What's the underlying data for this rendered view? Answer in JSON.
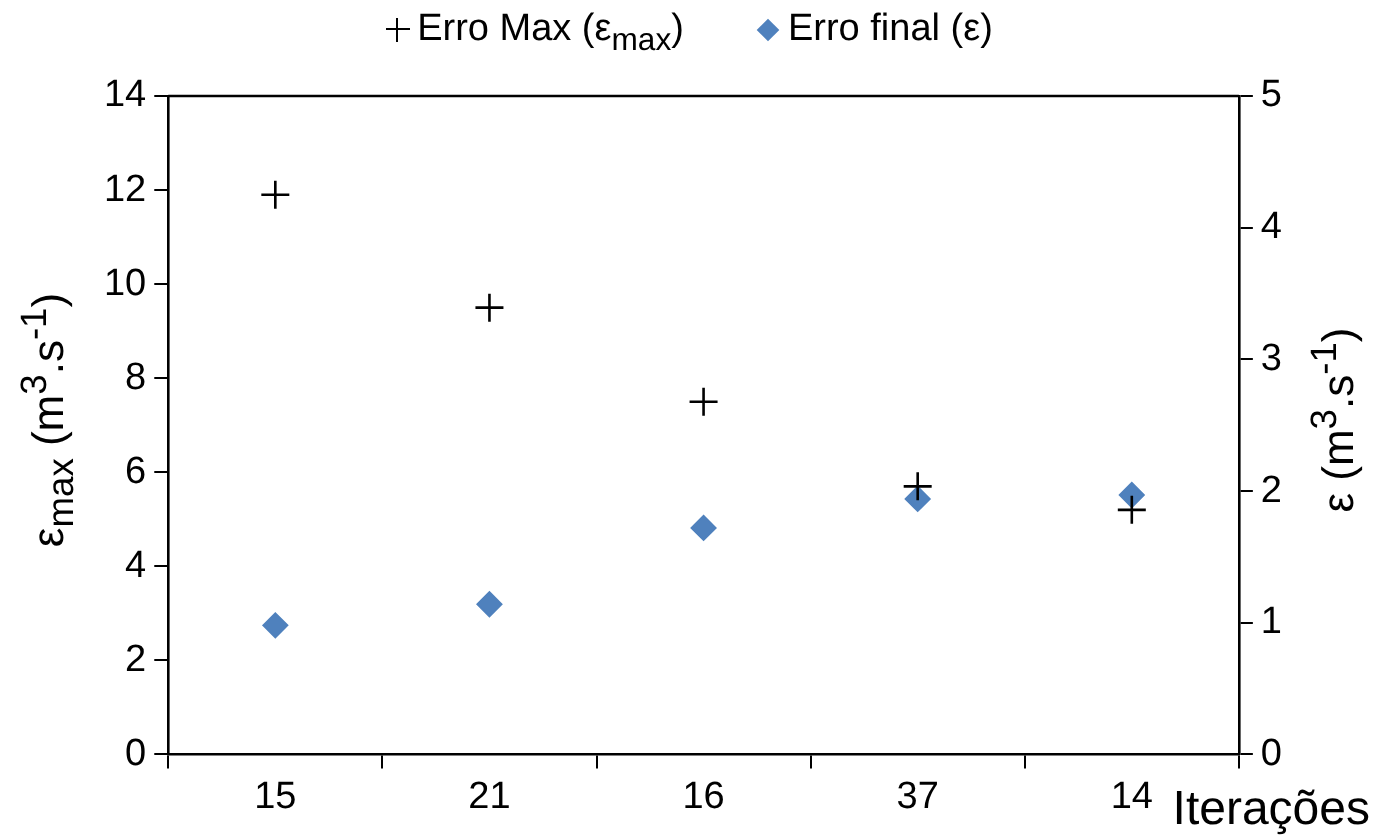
{
  "chart_data": {
    "type": "scatter",
    "xlabel": "Iterações",
    "ylabel": "ε$_{max}$ (m$^{3}$.s$^{-1}$)",
    "y2label": "ε (m$^{3}$.s$^{-1}$)",
    "categories": [
      "15",
      "21",
      "16",
      "37",
      "14"
    ],
    "series": [
      {
        "name": "Erro Max (ε$_{max}$)",
        "color": "#000000",
        "marker": "cross",
        "values": [
          11.9,
          9.5,
          7.5,
          5.7,
          5.2
        ]
      },
      {
        "name": "Erro final (ε)",
        "color": "#4f81bd",
        "marker": "diamond",
        "axis": "y2",
        "values": [
          0.98,
          1.14,
          1.72,
          1.94,
          1.97
        ]
      }
    ],
    "ylim": [
      0,
      14
    ],
    "yticks": [
      0,
      2,
      4,
      6,
      8,
      10,
      12,
      14
    ],
    "y2lim": [
      0,
      5
    ],
    "y2ticks": [
      0,
      1,
      2,
      3,
      4,
      5
    ],
    "grid": false,
    "legend": "top"
  }
}
